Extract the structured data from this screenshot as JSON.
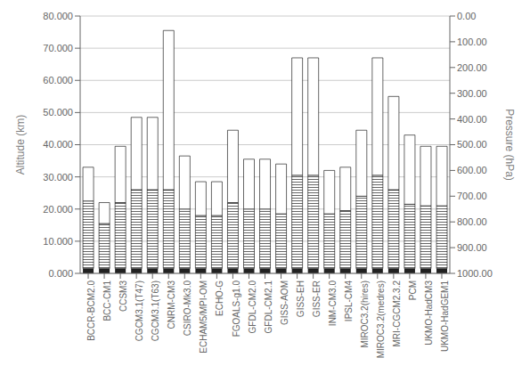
{
  "chart_data": {
    "type": "bar",
    "stacked": true,
    "grid": true,
    "categories": [
      "BCCR-BCM2.0",
      "BCC-CM1",
      "CCSM3",
      "CGCM3.1(T47)",
      "CGCM3.1(T63)",
      "CNRM-CM3",
      "CSIRO-Mk3.0",
      "ECHAM5/MPI-OM",
      "ECHO-G",
      "FGOALS-g1.0",
      "GFDL-CM2.0",
      "GFDL-CM2.1",
      "GISS-AOM",
      "GISS-EH",
      "GISS-ER",
      "INM-CM3.0",
      "IPSL-CM4",
      "MIROC3.2(hires)",
      "MIROC3.2(medres)",
      "MRI-CGCM2.3.2",
      "PCM",
      "UKMO-HadCM3",
      "UKMO-HadGEM1"
    ],
    "series": [
      {
        "color": "#222222",
        "values": [
          1.5,
          1.5,
          1.5,
          1.5,
          1.5,
          1.5,
          1.5,
          1.5,
          1.5,
          1.5,
          1.5,
          1.5,
          1.5,
          1.5,
          1.5,
          1.5,
          1.5,
          1.5,
          1.5,
          1.5,
          1.5,
          1.5,
          1.5
        ]
      },
      {
        "color": "#ffffff",
        "values": [
          21.0,
          14.0,
          20.5,
          24.5,
          24.5,
          24.5,
          18.5,
          16.5,
          16.5,
          20.5,
          18.5,
          18.5,
          17.0,
          29.0,
          29.0,
          17.0,
          18.0,
          22.5,
          29.0,
          24.5,
          20.0,
          19.5,
          19.5
        ]
      },
      {
        "color": "#ffffff",
        "values": [
          10.5,
          6.5,
          17.5,
          22.5,
          22.5,
          49.5,
          16.5,
          10.5,
          10.5,
          22.5,
          15.5,
          15.5,
          15.5,
          36.5,
          36.5,
          13.5,
          13.5,
          20.5,
          36.5,
          29,
          21.5,
          18.5,
          18.5
        ]
      }
    ],
    "y_label": "Altitude (km)",
    "y2_label": "Pressure (hPa)",
    "ylim": [
      0,
      80
    ],
    "yticks": [
      {
        "value": 0,
        "label": "0.000"
      },
      {
        "value": 10,
        "label": "10.000"
      },
      {
        "value": 20,
        "label": "20.000"
      },
      {
        "value": 30,
        "label": "30.000"
      },
      {
        "value": 40,
        "label": "40.000"
      },
      {
        "value": 50,
        "label": "50.000"
      },
      {
        "value": 60,
        "label": "60.000"
      },
      {
        "value": 70,
        "label": "70.000"
      },
      {
        "value": 80,
        "label": "80.000"
      }
    ],
    "y2lim": [
      1000,
      0
    ],
    "y2ticks": [
      {
        "value": 0,
        "label": "0.00"
      },
      {
        "value": 100,
        "label": "100.00"
      },
      {
        "value": 200,
        "label": "200.00"
      },
      {
        "value": 300,
        "label": "300.00"
      },
      {
        "value": 400,
        "label": "400.00"
      },
      {
        "value": 500,
        "label": "500.00"
      },
      {
        "value": 600,
        "label": "600.00"
      },
      {
        "value": 700,
        "label": "700.00"
      },
      {
        "value": 800,
        "label": "800.00"
      },
      {
        "value": 900,
        "label": "900.00"
      },
      {
        "value": 1000,
        "label": "1000.00"
      }
    ]
  }
}
